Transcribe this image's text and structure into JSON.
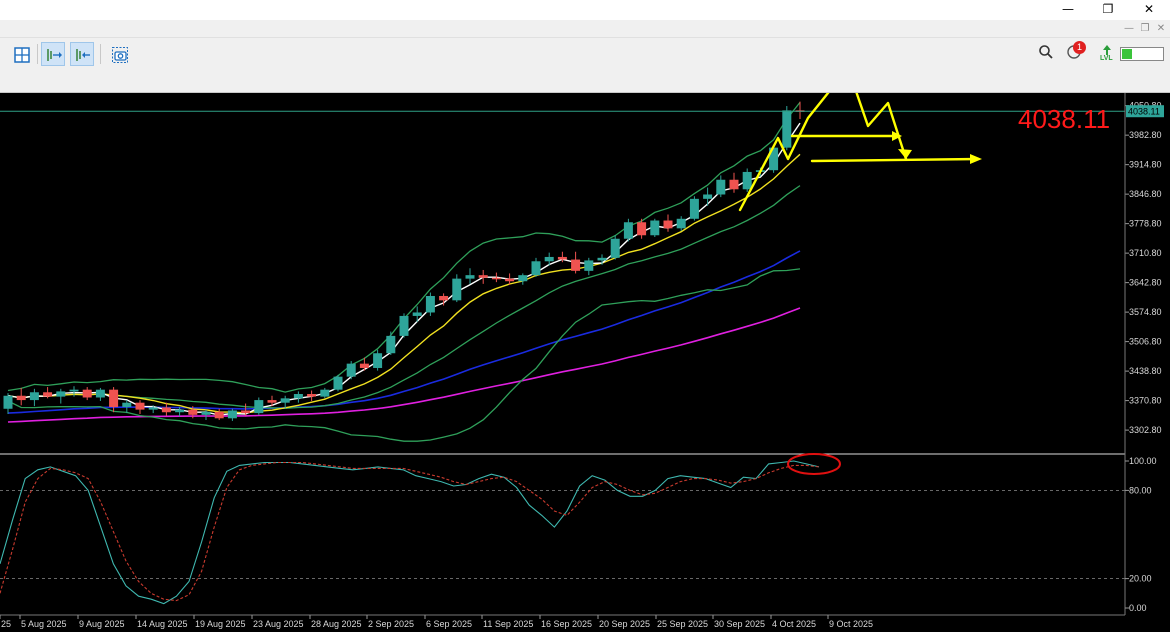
{
  "window": {
    "controls": {
      "minimize": "—",
      "restore": "❐",
      "close": "✕"
    },
    "inner_controls": {
      "minimize": "—",
      "restore": "❐",
      "close": "✕"
    }
  },
  "toolbar": {
    "buttons": [
      {
        "icon": "grid-icon"
      },
      {
        "icon": "auto-scroll-icon",
        "active": true
      },
      {
        "icon": "chart-shift-icon",
        "active": true
      },
      {
        "icon": "screenshot-icon"
      }
    ],
    "notification_count": "1",
    "level_label": "LVL",
    "level_fill": 0.25
  },
  "price_label": "4038.11",
  "chart_data": [
    {
      "type": "candlestick",
      "current_price_tag": "4038.11",
      "ylim": [
        3250,
        4080
      ],
      "y_ticks": [
        "4050.80",
        "3982.80",
        "3914.80",
        "3846.80",
        "3778.80",
        "3710.80",
        "3642.80",
        "3574.80",
        "3506.80",
        "3438.80",
        "3370.80",
        "3302.80"
      ],
      "y_tick_values": [
        4050.8,
        3982.8,
        3914.8,
        3846.8,
        3778.8,
        3710.8,
        3642.8,
        3574.8,
        3506.8,
        3438.8,
        3370.8,
        3302.8
      ],
      "x_labels": [
        "25",
        "5 Aug 2025",
        "9 Aug 2025",
        "14 Aug 2025",
        "19 Aug 2025",
        "23 Aug 2025",
        "28 Aug 2025",
        "2 Sep 2025",
        "6 Sep 2025",
        "11 Sep 2025",
        "16 Sep 2025",
        "20 Sep 2025",
        "25 Sep 2025",
        "30 Sep 2025",
        "4 Oct 2025",
        "9 Oct 2025"
      ],
      "candles": [
        [
          3352,
          3388,
          3340,
          3382
        ],
        [
          3382,
          3400,
          3360,
          3372
        ],
        [
          3372,
          3398,
          3358,
          3390
        ],
        [
          3390,
          3402,
          3376,
          3380
        ],
        [
          3380,
          3398,
          3364,
          3392
        ],
        [
          3392,
          3404,
          3380,
          3396
        ],
        [
          3396,
          3402,
          3372,
          3378
        ],
        [
          3378,
          3400,
          3370,
          3396
        ],
        [
          3396,
          3402,
          3344,
          3356
        ],
        [
          3356,
          3372,
          3342,
          3366
        ],
        [
          3366,
          3372,
          3340,
          3350
        ],
        [
          3350,
          3360,
          3342,
          3355
        ],
        [
          3355,
          3366,
          3336,
          3344
        ],
        [
          3344,
          3356,
          3334,
          3350
        ],
        [
          3350,
          3358,
          3330,
          3338
        ],
        [
          3338,
          3350,
          3326,
          3345
        ],
        [
          3345,
          3352,
          3326,
          3330
        ],
        [
          3330,
          3352,
          3324,
          3348
        ],
        [
          3348,
          3364,
          3336,
          3342
        ],
        [
          3342,
          3378,
          3338,
          3372
        ],
        [
          3372,
          3382,
          3358,
          3366
        ],
        [
          3366,
          3382,
          3352,
          3376
        ],
        [
          3376,
          3392,
          3366,
          3386
        ],
        [
          3386,
          3394,
          3370,
          3380
        ],
        [
          3380,
          3400,
          3376,
          3396
        ],
        [
          3396,
          3430,
          3392,
          3426
        ],
        [
          3426,
          3462,
          3420,
          3456
        ],
        [
          3456,
          3470,
          3440,
          3446
        ],
        [
          3446,
          3488,
          3440,
          3480
        ],
        [
          3480,
          3530,
          3476,
          3520
        ],
        [
          3520,
          3572,
          3516,
          3566
        ],
        [
          3566,
          3588,
          3552,
          3574
        ],
        [
          3574,
          3620,
          3566,
          3612
        ],
        [
          3612,
          3618,
          3590,
          3602
        ],
        [
          3602,
          3662,
          3598,
          3652
        ],
        [
          3652,
          3676,
          3640,
          3660
        ],
        [
          3660,
          3672,
          3640,
          3654
        ],
        [
          3654,
          3666,
          3644,
          3652
        ],
        [
          3652,
          3664,
          3638,
          3646
        ],
        [
          3646,
          3664,
          3638,
          3660
        ],
        [
          3660,
          3700,
          3656,
          3692
        ],
        [
          3692,
          3712,
          3682,
          3702
        ],
        [
          3702,
          3714,
          3690,
          3696
        ],
        [
          3696,
          3714,
          3664,
          3670
        ],
        [
          3670,
          3700,
          3660,
          3694
        ],
        [
          3694,
          3708,
          3684,
          3700
        ],
        [
          3700,
          3752,
          3696,
          3744
        ],
        [
          3744,
          3790,
          3738,
          3782
        ],
        [
          3782,
          3790,
          3744,
          3752
        ],
        [
          3752,
          3790,
          3748,
          3786
        ],
        [
          3786,
          3800,
          3760,
          3768
        ],
        [
          3768,
          3796,
          3762,
          3790
        ],
        [
          3790,
          3842,
          3786,
          3836
        ],
        [
          3836,
          3862,
          3820,
          3846
        ],
        [
          3846,
          3890,
          3840,
          3880
        ],
        [
          3880,
          3896,
          3850,
          3858
        ],
        [
          3858,
          3906,
          3852,
          3898
        ],
        [
          3898,
          3908,
          3888,
          3902
        ],
        [
          3902,
          3960,
          3896,
          3954
        ],
        [
          3954,
          4050,
          3948,
          4040
        ],
        [
          4040,
          4060,
          4020,
          4038
        ]
      ]
    },
    {
      "type": "line",
      "ylim": [
        0,
        100
      ],
      "y_ticks": [
        "100.00",
        "80.00",
        "20.00",
        "0.00"
      ],
      "y_tick_values": [
        100,
        80,
        20,
        0
      ],
      "series": [
        {
          "color": "#3fb8b0",
          "values": [
            30,
            60,
            88,
            94,
            96,
            93,
            90,
            80,
            55,
            30,
            15,
            8,
            6,
            3,
            8,
            18,
            45,
            75,
            93,
            97,
            98,
            99,
            99,
            99,
            98,
            97,
            96,
            95,
            94,
            95,
            96,
            95,
            94,
            90,
            88,
            86,
            83,
            84,
            88,
            91,
            89,
            82,
            70,
            63,
            55,
            66,
            83,
            90,
            87,
            80,
            76,
            76,
            80,
            88,
            90,
            89,
            88,
            85,
            82,
            89,
            88,
            98,
            99,
            100,
            98,
            96
          ]
        },
        {
          "color": "#c93a2e",
          "values": [
            10,
            40,
            72,
            88,
            95,
            94,
            92,
            88,
            72,
            52,
            32,
            18,
            10,
            6,
            5,
            9,
            25,
            55,
            82,
            94,
            97,
            98,
            99,
            99,
            99,
            98,
            97,
            96,
            95,
            95,
            95,
            95,
            95,
            93,
            91,
            89,
            86,
            84,
            86,
            88,
            89,
            86,
            80,
            74,
            66,
            63,
            72,
            82,
            86,
            84,
            80,
            77,
            78,
            82,
            86,
            88,
            88,
            87,
            85,
            86,
            88,
            92,
            95,
            97,
            97,
            96
          ]
        }
      ]
    }
  ]
}
